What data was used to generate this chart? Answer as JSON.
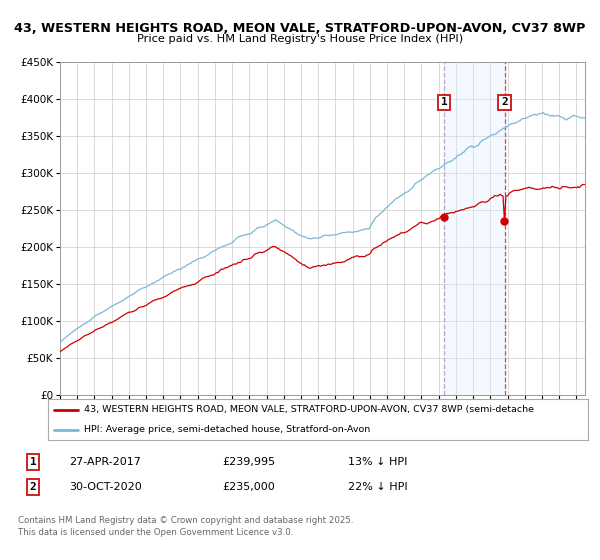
{
  "title_line1": "43, WESTERN HEIGHTS ROAD, MEON VALE, STRATFORD-UPON-AVON, CV37 8WP",
  "title_line2": "Price paid vs. HM Land Registry's House Price Index (HPI)",
  "ylim": [
    0,
    450000
  ],
  "yticks": [
    0,
    50000,
    100000,
    150000,
    200000,
    250000,
    300000,
    350000,
    400000,
    450000
  ],
  "ytick_labels": [
    "£0",
    "£50K",
    "£100K",
    "£150K",
    "£200K",
    "£250K",
    "£300K",
    "£350K",
    "£400K",
    "£450K"
  ],
  "xlim_start": 1995.0,
  "xlim_end": 2025.5,
  "hpi_color": "#7bb8d8",
  "price_color": "#cc0000",
  "vline1_color": "#aaaacc",
  "vline2_color": "#dd4444",
  "shade_color": "#ddeeff",
  "event1_date": 2017.32,
  "event1_price": 239995,
  "event2_date": 2020.83,
  "event2_price": 235000,
  "legend_line1": "43, WESTERN HEIGHTS ROAD, MEON VALE, STRATFORD-UPON-AVON, CV37 8WP (semi-detache",
  "legend_line2": "HPI: Average price, semi-detached house, Stratford-on-Avon",
  "note1_date": "27-APR-2017",
  "note1_price": "£239,995",
  "note1_hpi": "13% ↓ HPI",
  "note2_date": "30-OCT-2020",
  "note2_price": "£235,000",
  "note2_hpi": "22% ↓ HPI",
  "footer": "Contains HM Land Registry data © Crown copyright and database right 2025.\nThis data is licensed under the Open Government Licence v3.0.",
  "bg_color": "#ffffff",
  "grid_color": "#cccccc",
  "box_edge_color": "#cc2222"
}
